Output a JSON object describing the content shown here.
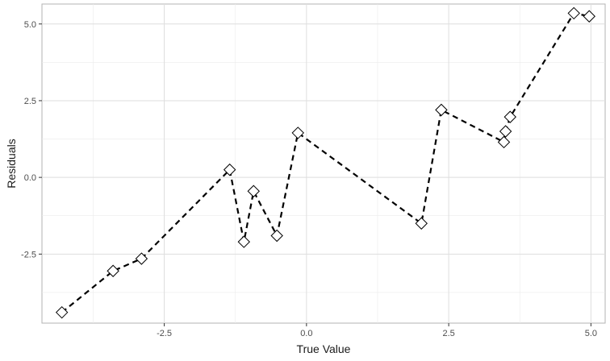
{
  "chart_data": {
    "type": "line",
    "title": "",
    "xlabel": "True Value",
    "ylabel": "Residuals",
    "xlim": [
      -4.65,
      5.25
    ],
    "ylim": [
      -4.75,
      5.65
    ],
    "x_ticks": [
      -2.5,
      0.0,
      2.5,
      5.0
    ],
    "x_tick_labels": [
      "-2.5",
      "0.0",
      "2.5",
      "5.0"
    ],
    "y_ticks": [
      -2.5,
      0.0,
      2.5,
      5.0
    ],
    "y_tick_labels": [
      "-2.5",
      "0.0",
      "2.5",
      "5.0"
    ],
    "grid": true,
    "legend": "none",
    "series": [
      {
        "line_style": "dashed",
        "line_color": "#000000",
        "marker": "diamond",
        "marker_fill": "#ffffff",
        "points": [
          {
            "x": -4.3,
            "y": -4.4
          },
          {
            "x": -3.4,
            "y": -3.05
          },
          {
            "x": -2.9,
            "y": -2.65
          },
          {
            "x": -1.35,
            "y": 0.25
          },
          {
            "x": -1.1,
            "y": -2.1
          },
          {
            "x": -0.93,
            "y": -0.45
          },
          {
            "x": -0.52,
            "y": -1.9
          },
          {
            "x": -0.15,
            "y": 1.45
          },
          {
            "x": 2.02,
            "y": -1.5
          },
          {
            "x": 2.37,
            "y": 2.2
          },
          {
            "x": 3.47,
            "y": 1.15
          },
          {
            "x": 3.5,
            "y": 1.5
          },
          {
            "x": 3.58,
            "y": 1.97
          },
          {
            "x": 4.7,
            "y": 5.35
          },
          {
            "x": 4.97,
            "y": 5.25
          }
        ]
      }
    ]
  }
}
